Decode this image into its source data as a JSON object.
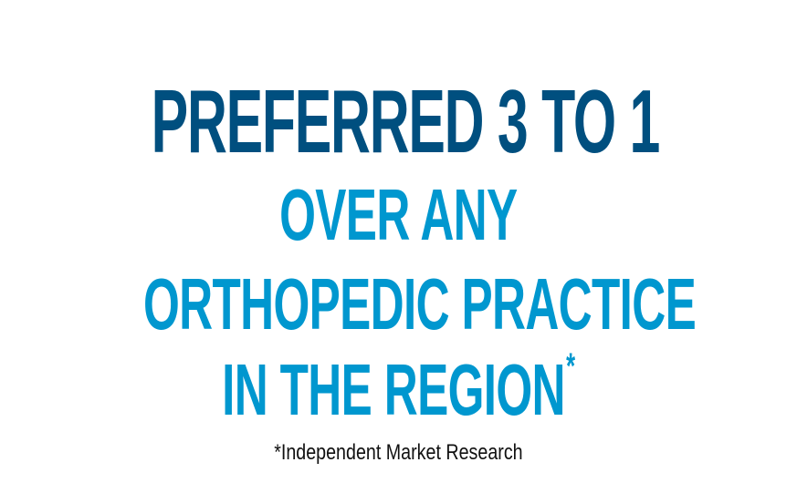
{
  "colors": {
    "dark_blue": "#004f7f",
    "light_blue": "#0097cf",
    "footnote": "#111111",
    "background": "#ffffff"
  },
  "headline": "PREFERRED 3 TO 1",
  "subheadline": {
    "line1": "OVER ANY",
    "line2": "ORTHOPEDIC PRACTICE",
    "line3": "IN THE REGION",
    "asterisk": "*"
  },
  "footnote": "*Independent Market Research"
}
